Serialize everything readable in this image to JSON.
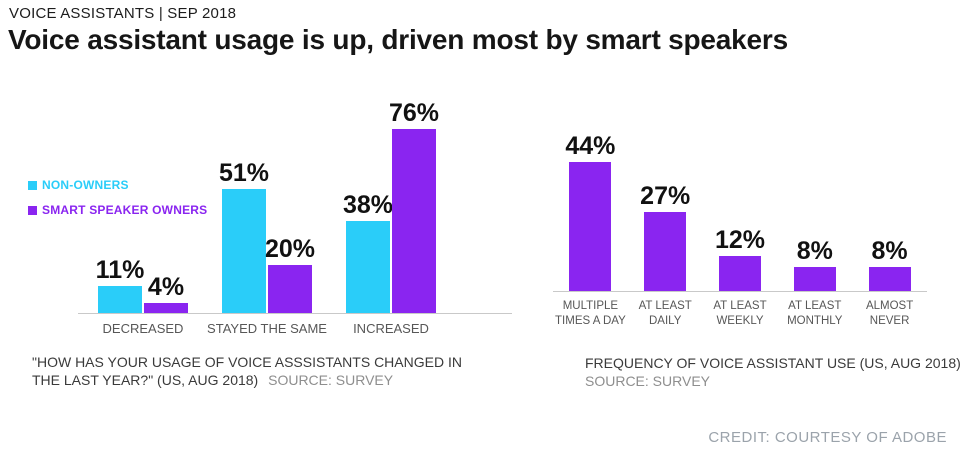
{
  "page": {
    "kicker": "VOICE ASSISTANTS | SEP 2018",
    "title": "Voice assistant usage is up, driven most by smart speakers",
    "credit": "CREDIT: COURTESY OF ADOBE"
  },
  "colors": {
    "non_owners": "#2ACDF9",
    "smart_speaker_owners": "#8A25F0",
    "axis_line": "#C9C9C9",
    "value_label": "#111111",
    "axis_label": "#575757",
    "caption_text": "#3A3A3A",
    "caption_source": "#8E8E8E",
    "credit_text": "#9BA3AB"
  },
  "legend": {
    "items": [
      {
        "label": "NON-OWNERS",
        "color": "#2ACDF9"
      },
      {
        "label": "SMART SPEAKER OWNERS",
        "color": "#8A25F0"
      }
    ]
  },
  "chart_data": [
    {
      "id": "usage-change",
      "type": "bar",
      "title": "\"HOW HAS YOUR USAGE OF VOICE ASSSISTANTS CHANGED IN THE LAST YEAR?\" (US, AUG 2018)",
      "source": "SOURCE: SURVEY",
      "categories": [
        "DECREASED",
        "STAYED THE SAME",
        "INCREASED"
      ],
      "series": [
        {
          "name": "NON-OWNERS",
          "color": "#2ACDF9",
          "values": [
            11,
            51,
            38
          ]
        },
        {
          "name": "SMART SPEAKER OWNERS",
          "color": "#8A25F0",
          "values": [
            4,
            20,
            76
          ]
        }
      ],
      "value_suffix": "%",
      "ylim": [
        0,
        90
      ],
      "grid": false,
      "legend_position": "left"
    },
    {
      "id": "usage-frequency",
      "type": "bar",
      "title": "FREQUENCY OF VOICE ASSISTANT USE (US, AUG 2018)",
      "source": "SOURCE: SURVEY",
      "categories": [
        "MULTIPLE TIMES A DAY",
        "AT LEAST DAILY",
        "AT LEAST WEEKLY",
        "AT LEAST MONTHLY",
        "ALMOST NEVER"
      ],
      "series": [
        {
          "name": "SMART SPEAKER OWNERS",
          "color": "#8A25F0",
          "values": [
            44,
            27,
            12,
            8,
            8
          ]
        }
      ],
      "value_suffix": "%",
      "ylim": [
        0,
        50
      ],
      "grid": false,
      "legend_position": "none"
    }
  ]
}
